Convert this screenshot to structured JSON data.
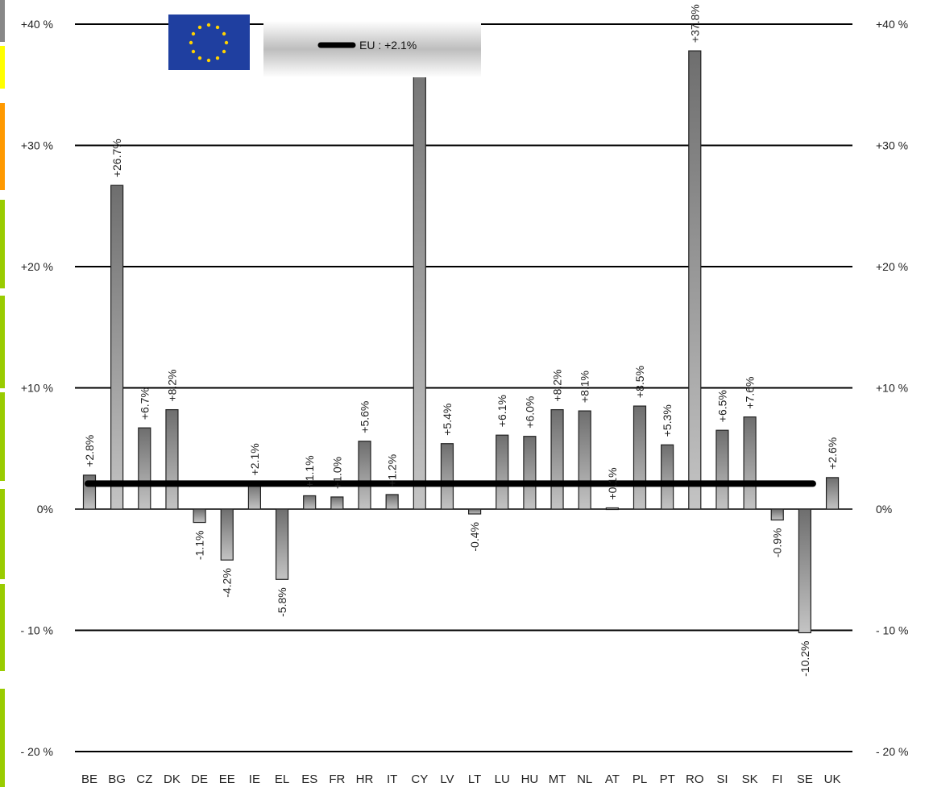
{
  "chart_data": {
    "type": "bar",
    "categories": [
      "BE",
      "BG",
      "CZ",
      "DK",
      "DE",
      "EE",
      "IE",
      "EL",
      "ES",
      "FR",
      "HR",
      "IT",
      "CY",
      "LV",
      "LT",
      "LU",
      "HU",
      "MT",
      "NL",
      "AT",
      "PL",
      "PT",
      "RO",
      "SI",
      "SK",
      "FI",
      "SE",
      "UK"
    ],
    "series": [
      {
        "values": [
          2.8,
          26.7,
          6.7,
          8.2,
          -1.1,
          -4.2,
          2.1,
          -5.8,
          1.1,
          1.0,
          5.6,
          1.2,
          40,
          5.4,
          -0.4,
          6.1,
          6.0,
          8.2,
          8.1,
          0.1,
          8.5,
          5.3,
          37.8,
          6.5,
          7.6,
          -0.9,
          -10.2,
          2.6
        ],
        "labels": [
          "+2.8%",
          "+26.7%",
          "+6.7%",
          "+8.2%",
          "-1.1%",
          "-4.2%",
          "+2.1%",
          "-5.8%",
          "+1.1%",
          "+1.0%",
          "+5.6%",
          "+1.2%",
          "",
          "+5.4%",
          "-0.4%",
          "+6.1%",
          "+6.0%",
          "+8.2%",
          "+8.1%",
          "+0.1%",
          "+8.5%",
          "+5.3%",
          "+37.8%",
          "+6.5%",
          "+7.6%",
          "-0.9%",
          "-10.2%",
          "+2.6%"
        ]
      }
    ],
    "reference_line": {
      "label": "EU : +2.1%",
      "value": 2.1
    },
    "y_ticks_left": [
      "+40 %",
      "+30 %",
      "+20 %",
      "+10 %",
      "0%",
      "- 10 %",
      "- 20 %"
    ],
    "y_ticks_right": [
      "+40 %",
      "+30 %",
      "+20 %",
      "+10 %",
      "0%",
      "- 10 %",
      "- 20 %"
    ],
    "y_tick_values": [
      40,
      30,
      20,
      10,
      0,
      -10,
      -20
    ],
    "ylim": [
      -20,
      40
    ],
    "grid": true,
    "legend_position": "top",
    "colors": {
      "bar_dark": "#6e6e6e",
      "bar_light": "#bdbdbd",
      "eu_blue": "#1f3fa0",
      "eu_star": "#ffd200",
      "line": "#000000",
      "strip": [
        "#888888",
        "#ffff00",
        "#ff9900",
        "#99cc00",
        "#99cc00",
        "#99cc00",
        "#99cc00",
        "#99cc00",
        "#99cc00",
        "#99cc00"
      ]
    }
  }
}
